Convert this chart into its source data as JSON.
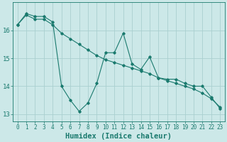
{
  "xlabel": "Humidex (Indice chaleur)",
  "background_color": "#cce8e8",
  "grid_color": "#aad0d0",
  "line_color": "#1a7a6e",
  "x_line1": [
    0,
    1,
    2,
    3,
    4,
    5,
    6,
    7,
    8,
    9,
    10,
    11,
    12,
    13,
    14,
    15,
    16,
    17,
    18,
    19,
    20,
    21,
    22,
    23
  ],
  "y_line1": [
    16.2,
    16.6,
    16.5,
    16.5,
    16.3,
    14.0,
    13.5,
    13.1,
    13.4,
    14.1,
    15.2,
    15.2,
    15.9,
    14.8,
    14.6,
    15.05,
    14.3,
    14.25,
    14.25,
    14.1,
    14.0,
    14.0,
    13.6,
    13.2
  ],
  "x_line2": [
    0,
    1,
    2,
    3,
    4,
    5,
    6,
    7,
    8,
    9,
    10,
    11,
    12,
    13,
    14,
    15,
    16,
    17,
    18,
    19,
    20,
    21,
    22,
    23
  ],
  "y_line2": [
    16.2,
    16.55,
    16.4,
    16.4,
    16.2,
    15.9,
    15.7,
    15.5,
    15.3,
    15.1,
    14.95,
    14.85,
    14.75,
    14.65,
    14.55,
    14.45,
    14.3,
    14.2,
    14.1,
    14.0,
    13.9,
    13.75,
    13.55,
    13.25
  ],
  "ylim": [
    12.75,
    17.0
  ],
  "xlim": [
    -0.5,
    23.5
  ],
  "yticks": [
    13,
    14,
    15,
    16
  ],
  "xticks": [
    0,
    1,
    2,
    3,
    4,
    5,
    6,
    7,
    8,
    9,
    10,
    11,
    12,
    13,
    14,
    15,
    16,
    17,
    18,
    19,
    20,
    21,
    22,
    23
  ],
  "tick_label_fontsize": 5.5,
  "xlabel_fontsize": 7.5
}
